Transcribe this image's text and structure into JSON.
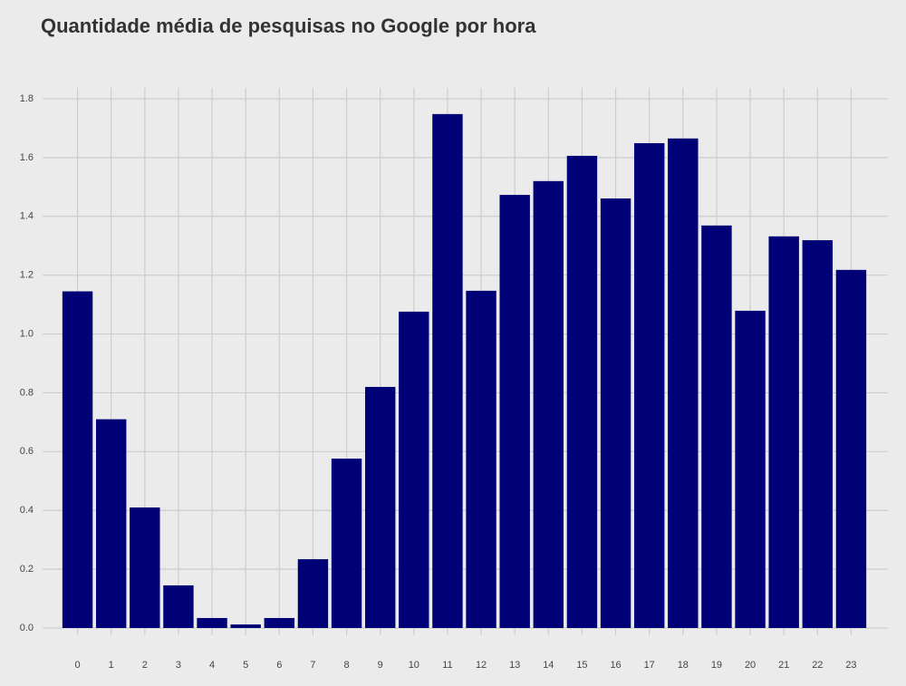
{
  "chart_data": {
    "type": "bar",
    "title": "Quantidade média de pesquisas no Google por hora",
    "categories": [
      "0",
      "1",
      "2",
      "3",
      "4",
      "5",
      "6",
      "7",
      "8",
      "9",
      "10",
      "11",
      "12",
      "13",
      "14",
      "15",
      "16",
      "17",
      "18",
      "19",
      "20",
      "21",
      "22",
      "23"
    ],
    "values": [
      1.145,
      0.71,
      0.41,
      0.145,
      0.034,
      0.012,
      0.034,
      0.234,
      0.576,
      0.82,
      1.076,
      1.748,
      1.147,
      1.473,
      1.52,
      1.606,
      1.461,
      1.649,
      1.665,
      1.369,
      1.079,
      1.332,
      1.319,
      1.218
    ],
    "color": "#000077",
    "ylim": [
      0,
      1.8
    ],
    "yticks": [
      {
        "value": 0,
        "label": "0.0"
      },
      0.2,
      0.4,
      0.6,
      0.8,
      {
        "value": 1,
        "label": "1.0"
      },
      1.2,
      1.4,
      1.6,
      1.8
    ],
    "grid": true
  }
}
